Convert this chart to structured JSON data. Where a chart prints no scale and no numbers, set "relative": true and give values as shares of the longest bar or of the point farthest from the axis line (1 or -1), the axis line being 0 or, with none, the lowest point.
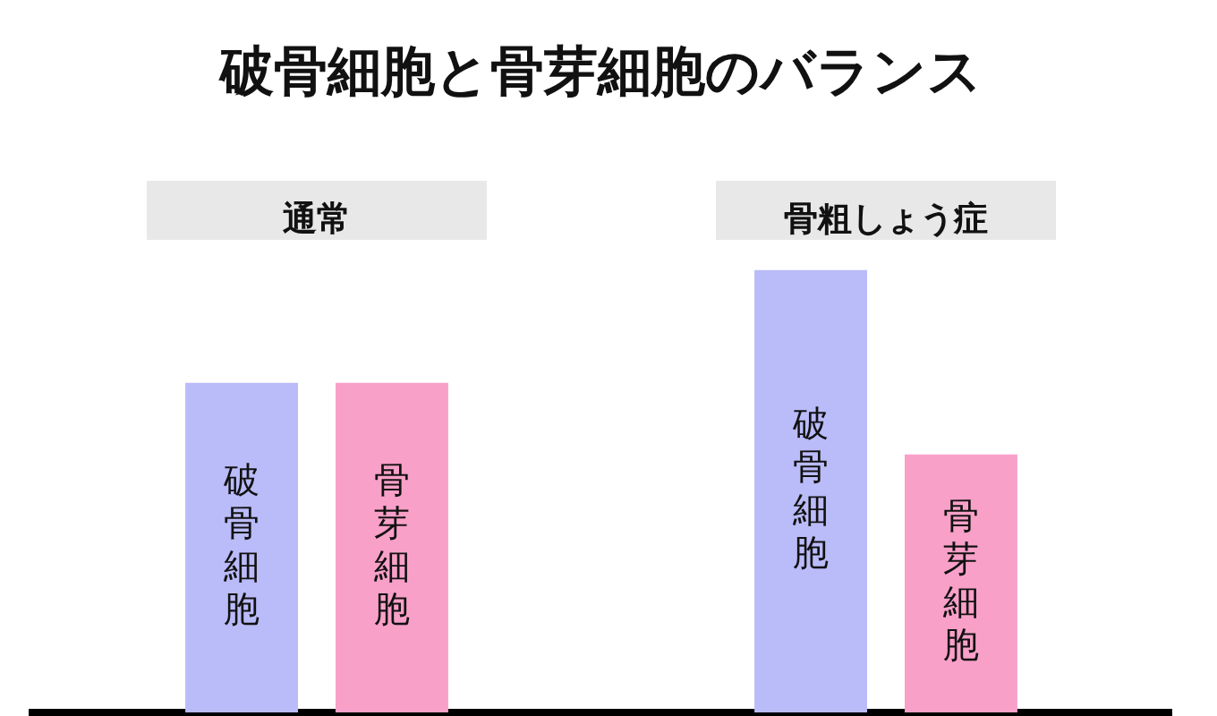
{
  "chart_data": {
    "type": "bar",
    "title": "破骨細胞と骨芽細胞のバランス",
    "categories": [
      "通常",
      "骨粗しょう症"
    ],
    "relative": true,
    "series": [
      {
        "name": "破骨細胞",
        "color": "#babbf9",
        "values": [
          0.745,
          1
        ]
      },
      {
        "name": "骨芽細胞",
        "color": "#f9a0c9",
        "values": [
          0.745,
          0.583
        ]
      }
    ]
  }
}
